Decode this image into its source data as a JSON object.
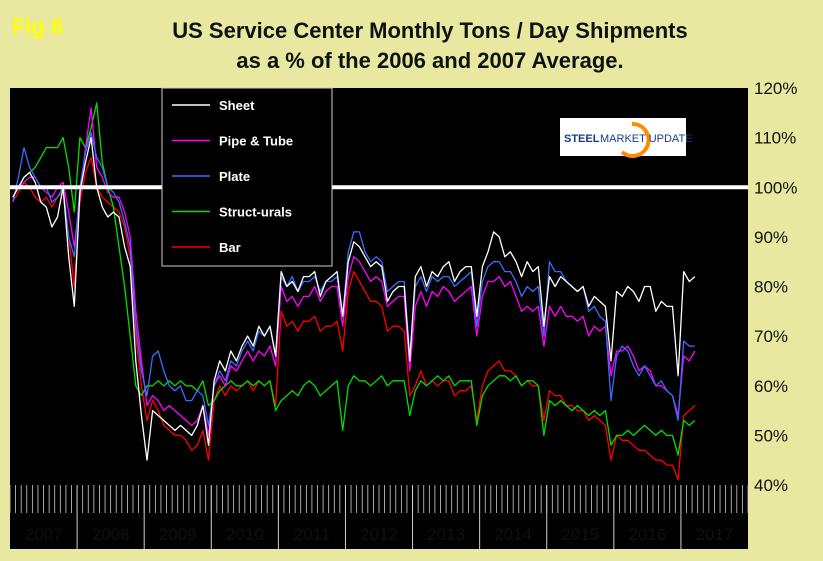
{
  "figure_label": "Fig 6",
  "logo": {
    "part1": "STEEL",
    "part2": "MARKET UPDATE"
  },
  "chart_data": {
    "type": "line",
    "title": "US Service Center Monthly Tons / Day Shipments",
    "subtitle": "as a % of the 2006 and 2007 Average.",
    "ylim": [
      40,
      120
    ],
    "yticks": [
      40,
      50,
      60,
      70,
      80,
      90,
      100,
      110,
      120
    ],
    "ytick_labels": [
      "40%",
      "50%",
      "60%",
      "70%",
      "80%",
      "90%",
      "100%",
      "110%",
      "120%"
    ],
    "reference_line": 100,
    "years": [
      "2007",
      "2008",
      "2009",
      "2010",
      "2011",
      "2012",
      "2013",
      "2014",
      "2015",
      "2016",
      "2017"
    ],
    "legend_position": "top-left",
    "colors": {
      "background": "#000000",
      "page": "#e8e8a0"
    },
    "series": [
      {
        "name": "Sheet",
        "color": "#ffffff",
        "values": [
          98,
          100,
          102,
          103,
          101,
          97,
          96,
          92,
          94,
          100,
          86,
          76,
          99,
          105,
          110,
          100,
          96,
          94,
          95,
          94,
          88,
          84,
          65,
          54,
          45,
          55,
          54,
          53,
          52,
          51,
          52,
          51,
          50,
          52,
          56,
          48,
          61,
          65,
          63,
          67,
          65,
          68,
          70,
          68,
          72,
          70,
          72,
          66,
          83,
          80,
          81,
          79,
          82,
          82,
          83,
          78,
          81,
          82,
          83,
          74,
          85,
          89,
          88,
          86,
          84,
          85,
          84,
          77,
          79,
          80,
          80,
          65,
          82,
          84,
          80,
          83,
          82,
          84,
          85,
          81,
          83,
          84,
          84,
          74,
          84,
          87,
          91,
          90,
          86,
          87,
          85,
          82,
          85,
          83,
          84,
          72,
          82,
          80,
          82,
          81,
          80,
          79,
          80,
          76,
          78,
          77,
          76,
          65,
          79,
          78,
          80,
          79,
          77,
          80,
          80,
          75,
          77,
          76,
          76,
          62,
          83,
          81,
          82
        ]
      },
      {
        "name": "Pipe & Tube",
        "color": "#ff00ff",
        "values": [
          98,
          100,
          101,
          102,
          102,
          100,
          99,
          98,
          100,
          101,
          95,
          88,
          98,
          108,
          116,
          104,
          102,
          99,
          98,
          98,
          95,
          90,
          75,
          65,
          56,
          58,
          57,
          55,
          56,
          55,
          54,
          53,
          52,
          53,
          56,
          50,
          60,
          62,
          60,
          64,
          63,
          65,
          67,
          65,
          67,
          66,
          68,
          64,
          80,
          77,
          78,
          76,
          78,
          78,
          80,
          77,
          79,
          80,
          80,
          72,
          82,
          86,
          85,
          83,
          81,
          82,
          81,
          76,
          77,
          78,
          78,
          63,
          76,
          79,
          76,
          79,
          78,
          80,
          79,
          77,
          78,
          79,
          80,
          70,
          78,
          81,
          81,
          82,
          80,
          81,
          78,
          75,
          76,
          75,
          76,
          68,
          76,
          74,
          76,
          74,
          74,
          73,
          74,
          70,
          72,
          71,
          72,
          62,
          67,
          67,
          68,
          66,
          63,
          64,
          63,
          60,
          60,
          59,
          58,
          54,
          66,
          65,
          67
        ]
      },
      {
        "name": "Plate",
        "color": "#3a6cff",
        "values": [
          97,
          102,
          108,
          104,
          102,
          100,
          100,
          97,
          98,
          100,
          90,
          86,
          100,
          107,
          111,
          106,
          104,
          100,
          99,
          97,
          93,
          88,
          72,
          63,
          58,
          66,
          67,
          63,
          60,
          59,
          60,
          57,
          57,
          59,
          58,
          52,
          60,
          63,
          61,
          65,
          64,
          67,
          69,
          67,
          71,
          70,
          72,
          66,
          82,
          80,
          82,
          79,
          81,
          81,
          82,
          79,
          81,
          81,
          82,
          74,
          87,
          91,
          91,
          87,
          85,
          86,
          85,
          79,
          80,
          81,
          81,
          66,
          80,
          82,
          79,
          82,
          81,
          82,
          82,
          80,
          81,
          82,
          83,
          72,
          81,
          84,
          85,
          85,
          83,
          83,
          81,
          78,
          80,
          79,
          80,
          70,
          85,
          83,
          83,
          81,
          80,
          79,
          80,
          75,
          76,
          74,
          73,
          57,
          66,
          68,
          67,
          64,
          62,
          64,
          62,
          60,
          61,
          59,
          58,
          53,
          69,
          68,
          68
        ]
      },
      {
        "name": "Struct-urals",
        "color": "#00e000",
        "values": [
          98,
          100,
          102,
          103,
          104,
          106,
          108,
          108,
          108,
          110,
          104,
          95,
          110,
          108,
          112,
          117,
          105,
          100,
          96,
          88,
          80,
          70,
          60,
          58,
          60,
          60,
          61,
          60,
          61,
          60,
          61,
          60,
          60,
          59,
          61,
          56,
          57,
          59,
          60,
          61,
          60,
          60,
          61,
          60,
          61,
          60,
          61,
          55,
          57,
          58,
          59,
          58,
          60,
          61,
          60,
          58,
          59,
          60,
          61,
          51,
          60,
          62,
          61,
          61,
          60,
          61,
          62,
          60,
          61,
          61,
          61,
          54,
          59,
          61,
          60,
          61,
          62,
          61,
          62,
          60,
          61,
          61,
          61,
          52,
          58,
          60,
          61,
          62,
          62,
          61,
          62,
          60,
          61,
          61,
          60,
          50,
          57,
          56,
          57,
          56,
          55,
          56,
          55,
          54,
          55,
          54,
          55,
          48,
          50,
          50,
          51,
          50,
          51,
          52,
          51,
          50,
          51,
          50,
          50,
          46,
          53,
          52,
          53
        ]
      },
      {
        "name": "Bar",
        "color": "#ff0000",
        "values": [
          97,
          99,
          101,
          100,
          98,
          97,
          98,
          96,
          98,
          99,
          90,
          80,
          97,
          103,
          106,
          100,
          98,
          97,
          96,
          95,
          92,
          86,
          70,
          60,
          53,
          57,
          55,
          52,
          51,
          50,
          50,
          49,
          47,
          48,
          51,
          45,
          57,
          60,
          58,
          60,
          59,
          60,
          61,
          59,
          61,
          60,
          61,
          56,
          75,
          72,
          73,
          71,
          73,
          73,
          74,
          71,
          72,
          72,
          73,
          67,
          79,
          83,
          81,
          79,
          77,
          77,
          76,
          71,
          72,
          72,
          71,
          58,
          60,
          63,
          60,
          61,
          60,
          61,
          61,
          58,
          59,
          59,
          60,
          53,
          60,
          63,
          64,
          65,
          63,
          63,
          62,
          60,
          61,
          60,
          60,
          53,
          59,
          58,
          58,
          56,
          56,
          55,
          55,
          53,
          54,
          53,
          52,
          45,
          50,
          49,
          49,
          48,
          47,
          47,
          46,
          45,
          45,
          44,
          44,
          41,
          54,
          55,
          56
        ]
      }
    ]
  }
}
